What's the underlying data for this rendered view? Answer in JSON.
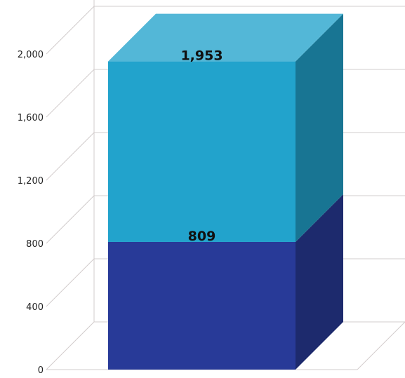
{
  "chart_data": {
    "type": "bar",
    "stacked": true,
    "three_d": true,
    "categories": [
      ""
    ],
    "series": [
      {
        "values": [
          809
        ],
        "color": "#283a98"
      },
      {
        "values": [
          1144
        ],
        "color": "#22a3cc"
      }
    ],
    "data_labels": [
      "809",
      "1,953"
    ],
    "stack_totals": [
      809,
      1953
    ],
    "y_ticks": [
      "0",
      "400",
      "800",
      "1,200",
      "1,600",
      "2,000"
    ],
    "y_tick_values": [
      0,
      400,
      800,
      1200,
      1600,
      2000
    ],
    "ylim": [
      0,
      2000
    ],
    "grid": true,
    "legend": "none"
  }
}
